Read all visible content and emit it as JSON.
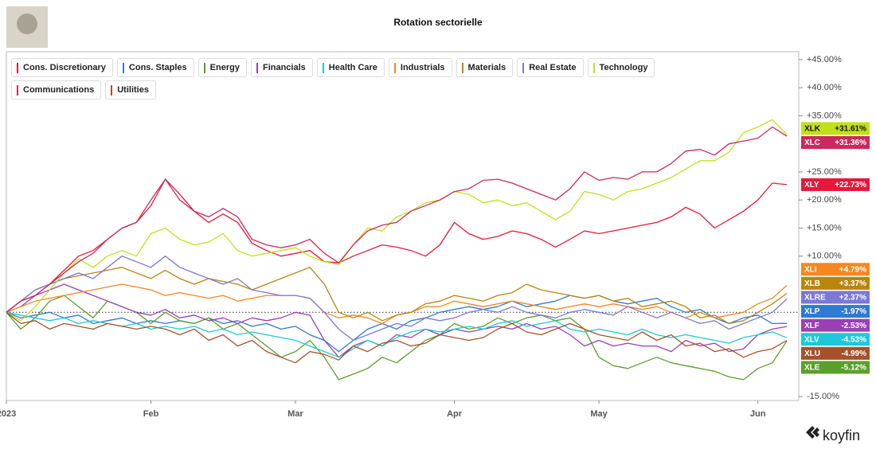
{
  "chart_data": {
    "type": "line",
    "title": "Rotation sectorielle",
    "brand": "koyfin",
    "categories": [
      "2023",
      null,
      null,
      null,
      null,
      null,
      null,
      null,
      null,
      null,
      "Feb",
      null,
      null,
      null,
      null,
      null,
      null,
      null,
      null,
      null,
      "Mar",
      null,
      null,
      null,
      null,
      null,
      null,
      null,
      null,
      null,
      null,
      "Apr",
      null,
      null,
      null,
      null,
      null,
      null,
      null,
      null,
      null,
      "May",
      null,
      null,
      null,
      null,
      null,
      null,
      null,
      null,
      null,
      null,
      "Jun",
      null,
      null
    ],
    "ylim": [
      -15.7,
      46.4
    ],
    "yticks": [
      {
        "value": 45,
        "label": "+45.00%"
      },
      {
        "value": 40,
        "label": "+40.00%"
      },
      {
        "value": 35,
        "label": "+35.00%"
      },
      {
        "value": 25,
        "label": "+25.00%"
      },
      {
        "value": 20,
        "label": "+20.00%"
      },
      {
        "value": 15,
        "label": "+15.00%"
      },
      {
        "value": 10,
        "label": "+10.00%"
      },
      {
        "value": -15,
        "label": "-15.00%"
      }
    ],
    "baseline": 0,
    "series": [
      {
        "name": "Cons. Discretionary",
        "ticker": "XLY",
        "last_label": "+22.73%",
        "color": "#e8173b",
        "values": [
          0,
          2,
          3,
          5,
          7.5,
          10,
          11,
          13,
          15,
          16,
          19,
          23.7,
          21,
          18,
          16,
          17.5,
          16,
          12.3,
          11,
          10,
          10.5,
          11,
          9,
          8.8,
          10,
          11,
          12,
          11.6,
          11,
          10,
          12,
          16,
          14,
          13,
          13.5,
          14.5,
          14,
          13,
          11.6,
          13,
          14.5,
          14,
          14.5,
          15,
          15.5,
          16,
          17,
          18.7,
          17.5,
          15,
          16.5,
          18,
          20,
          23,
          22.73
        ]
      },
      {
        "name": "Cons. Staples",
        "ticker": "XLP",
        "last_label": "-1.97%",
        "color": "#2f7bd0",
        "values": [
          0,
          -1,
          -0.5,
          0,
          -1,
          -0.5,
          -2,
          -1.5,
          -1,
          -2,
          -1.5,
          -2,
          -1.5,
          -2,
          -1,
          -2,
          -1.5,
          -2.5,
          -2,
          -3,
          -2.5,
          -4,
          -5,
          -7,
          -5,
          -3,
          -2,
          -3,
          -1.5,
          -1,
          0,
          0.5,
          1,
          0.5,
          1,
          2,
          1,
          1.5,
          2,
          3,
          2.5,
          3,
          2,
          1.5,
          2,
          2.5,
          1,
          0,
          0.5,
          -1,
          -2,
          -1,
          -0.5,
          -2,
          -1.97
        ]
      },
      {
        "name": "Energy",
        "ticker": "XLE",
        "last_label": "-5.12%",
        "color": "#5aa02c",
        "values": [
          0,
          -3,
          -1,
          2,
          3,
          1,
          -1,
          2,
          1,
          0,
          -2,
          0,
          -1.5,
          -2,
          -1,
          -3,
          -2,
          -4,
          -6,
          -8,
          -7,
          -5,
          -8,
          -12,
          -11,
          -10,
          -8,
          -9,
          -7,
          -5,
          -4,
          -2,
          -3,
          -2.5,
          -1,
          -2,
          -1,
          -0.5,
          -1.5,
          -1,
          -3,
          -8,
          -9.5,
          -10,
          -9,
          -8,
          -9,
          -9.5,
          -10,
          -10.5,
          -11.5,
          -12,
          -10,
          -9,
          -5.12
        ]
      },
      {
        "name": "Financials",
        "ticker": "XLF",
        "last_label": "-2.53%",
        "color": "#9b3fb5",
        "values": [
          0,
          1,
          3,
          4,
          5,
          4,
          3,
          2,
          1,
          0,
          -0.5,
          0.5,
          -1,
          -0.5,
          -1.5,
          -1,
          -2,
          -1,
          -1.5,
          -1,
          0,
          -0.5,
          -5,
          -8,
          -6,
          -5,
          -6,
          -4,
          -4.5,
          -3,
          -4,
          -3,
          -3.5,
          -3,
          -2.5,
          -3,
          -2,
          -3,
          -2.5,
          -4,
          -6,
          -5,
          -6,
          -5.5,
          -6,
          -6,
          -7,
          -5,
          -6,
          -5.5,
          -7,
          -6.5,
          -4,
          -3,
          -2.53
        ]
      },
      {
        "name": "Health Care",
        "ticker": "XLV",
        "last_label": "-4.53%",
        "color": "#1fc8d8",
        "values": [
          0,
          -0.5,
          -1,
          -1.5,
          -1,
          -2,
          -1.5,
          -2,
          -2.5,
          -2,
          -3,
          -2.5,
          -3,
          -2.5,
          -3.5,
          -3,
          -4,
          -3.5,
          -4,
          -4.5,
          -5,
          -6,
          -7,
          -8,
          -6.5,
          -5,
          -6,
          -4.5,
          -3.5,
          -3,
          -3.5,
          -3,
          -2.5,
          -3,
          -2,
          -1.5,
          -2.5,
          -2,
          -1.5,
          -3,
          -3.5,
          -3,
          -3.5,
          -4,
          -3,
          -4,
          -4.5,
          -4,
          -4.5,
          -5,
          -5.5,
          -4.5,
          -4,
          -3.5,
          -4.53
        ]
      },
      {
        "name": "Industrials",
        "ticker": "XLI",
        "last_label": "+4.79%",
        "color": "#f5871f",
        "values": [
          0,
          1,
          2,
          2.5,
          3,
          3.5,
          4,
          4.5,
          5,
          4.5,
          4,
          3,
          3.5,
          3,
          2.5,
          3,
          2,
          2.5,
          3,
          3,
          3,
          2.5,
          0,
          -1,
          -0.5,
          -1,
          -2,
          -0.5,
          0,
          1,
          1,
          2,
          1.5,
          1,
          1.5,
          2,
          1.5,
          1,
          0.5,
          1,
          1.5,
          1,
          1.5,
          1,
          0.5,
          1,
          0,
          -1,
          0,
          -1,
          -0.5,
          0,
          1.5,
          2.5,
          4.79
        ]
      },
      {
        "name": "Materials",
        "ticker": "XLB",
        "last_label": "+3.37%",
        "color": "#b8860b",
        "values": [
          0,
          2,
          4,
          5,
          6,
          6.5,
          7,
          7.5,
          8,
          7,
          6,
          7.5,
          6,
          5,
          6,
          5.5,
          5,
          4,
          5,
          6,
          7,
          8,
          5,
          0,
          -1,
          0,
          -1.5,
          -0.5,
          0,
          1.5,
          2,
          3,
          2.5,
          2,
          3,
          3.5,
          5,
          4,
          3.5,
          3,
          2.5,
          3,
          2,
          2.5,
          1,
          1.5,
          2,
          1,
          -1,
          -0.5,
          -2,
          -1.5,
          0,
          1.5,
          3.37
        ]
      },
      {
        "name": "Real Estate",
        "ticker": "XLRE",
        "last_label": "+2.37%",
        "color": "#7b78d8",
        "values": [
          0,
          2,
          4,
          5,
          6,
          7,
          6,
          8,
          10,
          9,
          8,
          10,
          8,
          7,
          6,
          5,
          6,
          4,
          3.5,
          3,
          3,
          2.5,
          0,
          -3,
          -5,
          -4,
          -3,
          -2,
          -2.5,
          -1,
          -1.5,
          -1,
          0,
          0.5,
          0,
          1,
          0,
          -0.5,
          -1,
          0,
          0.5,
          0,
          -0.5,
          1,
          0,
          -1,
          0,
          -1,
          -2,
          -1.5,
          -3,
          -2,
          -1,
          0,
          2.37
        ]
      },
      {
        "name": "Technology",
        "ticker": "XLK",
        "last_label": "+31.61%",
        "color": "#c2e01a",
        "values": [
          0,
          -1.5,
          1,
          4,
          7,
          9.5,
          8,
          10,
          11,
          10,
          14,
          15,
          13,
          12,
          12.5,
          14,
          11,
          10,
          10.5,
          11,
          11.5,
          10,
          9,
          8.5,
          12,
          15,
          14.5,
          17,
          18,
          19.5,
          20,
          21.5,
          21,
          19.5,
          20,
          19,
          19.5,
          18,
          16.5,
          18,
          21.5,
          21,
          20,
          21.5,
          22,
          23,
          24,
          25.5,
          27,
          27,
          28.5,
          32,
          33,
          34.3,
          31.61
        ]
      },
      {
        "name": "Communications",
        "ticker": "XLC",
        "last_label": "+31.36%",
        "color": "#c92a5e",
        "values": [
          0,
          2,
          3,
          5,
          7,
          9,
          10.5,
          13,
          15,
          16,
          20,
          23.7,
          20,
          18,
          17,
          18.5,
          17,
          13,
          12,
          11.5,
          12,
          13,
          10.5,
          8.8,
          12,
          14.5,
          15.5,
          16,
          18,
          19,
          20,
          21.5,
          22,
          23.5,
          23.7,
          23,
          22,
          21,
          20,
          22,
          25,
          23.5,
          24,
          23.7,
          25,
          25,
          26.5,
          28.7,
          29,
          28,
          30,
          30.5,
          31,
          33,
          31.36
        ]
      },
      {
        "name": "Utilities",
        "ticker": "XLU",
        "last_label": "-4.99%",
        "color": "#a5522a",
        "values": [
          0,
          -2,
          -1.5,
          -3,
          -2,
          -2.5,
          -3,
          -2,
          -2.5,
          -3,
          -2.5,
          -3,
          -4,
          -3,
          -5,
          -4,
          -6,
          -5,
          -7,
          -8,
          -9,
          -7,
          -7.5,
          -8.5,
          -6,
          -7,
          -5.5,
          -5,
          -6,
          -5.5,
          -4,
          -4.5,
          -5,
          -4.5,
          -3,
          -2,
          -3.5,
          -4,
          -3,
          -2,
          -3,
          -4,
          -4.5,
          -5,
          -3.5,
          -5,
          -4,
          -6,
          -5.5,
          -7,
          -6.5,
          -8,
          -7,
          -6.5,
          -4.99
        ]
      }
    ]
  }
}
